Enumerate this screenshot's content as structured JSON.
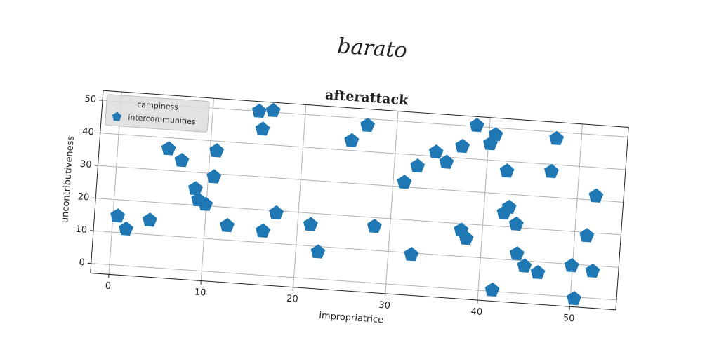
{
  "chart_data": {
    "type": "scatter",
    "suptitle": "barato",
    "title": "afterattack",
    "xlabel": "impropriatrice",
    "ylabel": "uncontributiveness",
    "legend_title": "campiness",
    "legend": "upper left",
    "grid": true,
    "xlim": [
      -2,
      55
    ],
    "ylim": [
      -3,
      53
    ],
    "xticks": [
      0,
      10,
      20,
      30,
      40,
      50
    ],
    "yticks": [
      0,
      10,
      20,
      30,
      40,
      50
    ],
    "series": [
      {
        "name": "intercommunities",
        "color": "#1f77b4",
        "marker": "pentagon",
        "x": [
          0.5,
          1.5,
          4,
          5.5,
          7,
          8.7,
          9.1,
          9.9,
          10.6,
          10.7,
          12.4,
          15,
          16.5,
          15.5,
          16.3,
          17.6,
          21.4,
          22.4,
          25.2,
          26.8,
          28.3,
          31.2,
          32.5,
          32.5,
          34.4,
          35.6,
          37.2,
          37.7,
          38.3,
          38.6,
          40.2,
          40.7,
          41.5,
          42.2,
          42.2,
          42.7,
          43.6,
          43.9,
          44.8,
          46.3,
          47,
          47.3,
          49.9,
          50.4,
          51.3,
          52.2,
          52
        ],
        "y": [
          15,
          11.2,
          14.4,
          36.6,
          33.3,
          25,
          21.6,
          20.4,
          29,
          37,
          14.4,
          50,
          50.5,
          44.6,
          13.5,
          19.3,
          16.5,
          8.3,
          43,
          48,
          17.3,
          31.4,
          36.6,
          9.5,
          41.3,
          38.4,
          43.6,
          18,
          15.6,
          50.3,
          45,
          47.9,
          0.4,
          37,
          24.2,
          26,
          21,
          12,
          8.4,
          6.7,
          37.8,
          48,
          9.5,
          -0.5,
          19,
          8.3,
          31.3
        ]
      }
    ]
  }
}
